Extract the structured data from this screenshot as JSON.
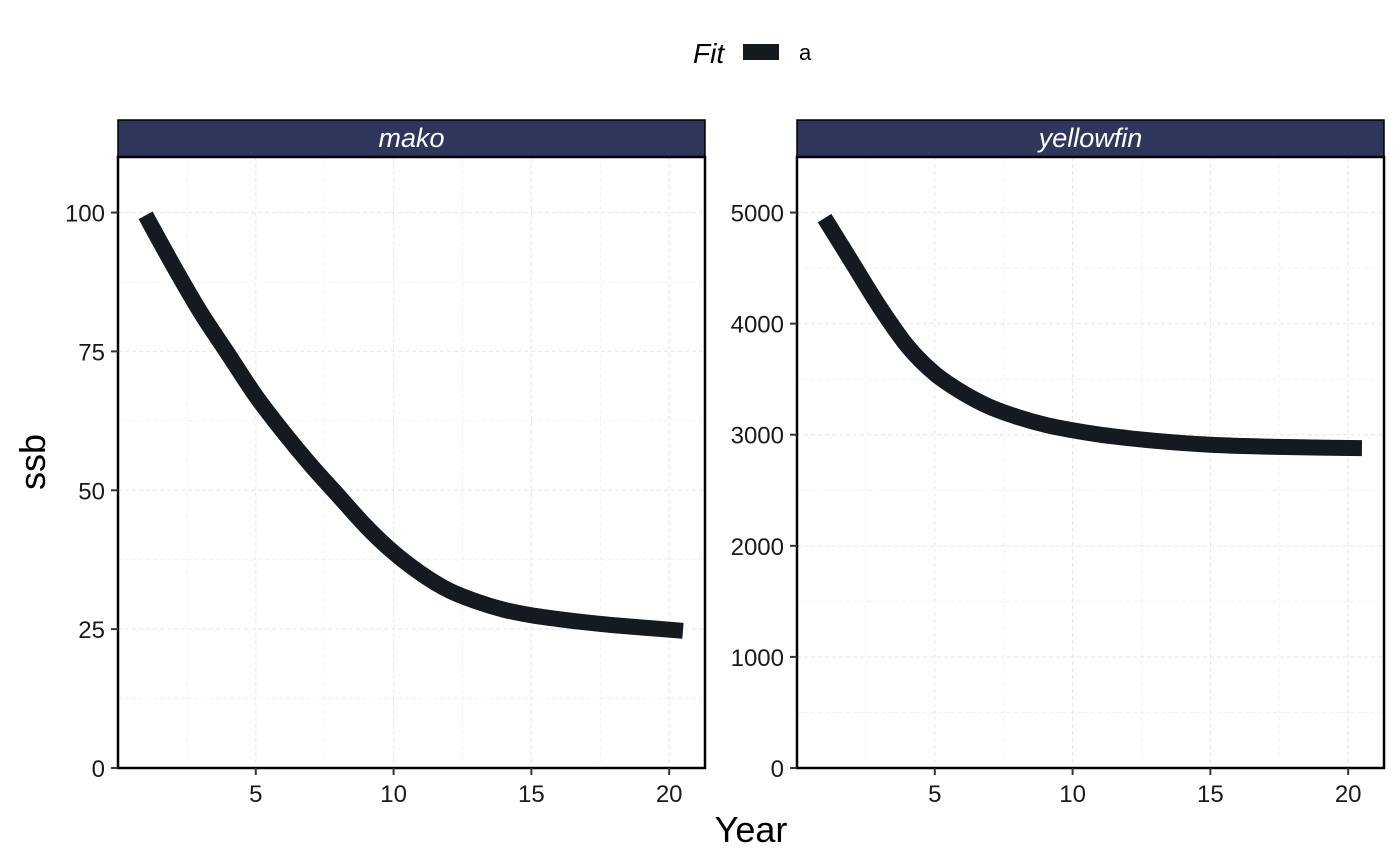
{
  "legend": {
    "title": "Fit",
    "entries": [
      {
        "label": "a",
        "color": "#151a21"
      }
    ]
  },
  "axes": {
    "xlabel": "Year",
    "ylabel": "ssb"
  },
  "colors": {
    "strip_fill": "#2e365c",
    "line": "#151a21",
    "frame": "#000000"
  },
  "chart_data": [
    {
      "type": "line",
      "panel": "mako",
      "x": [
        1,
        2,
        3,
        4,
        5,
        6,
        7,
        8,
        9,
        10,
        11,
        12,
        13,
        14,
        15,
        16,
        17,
        18,
        19,
        20,
        20.5
      ],
      "series": [
        {
          "name": "a",
          "values": [
            99.5,
            90.5,
            82,
            74.5,
            67,
            60.5,
            54.5,
            49,
            43.5,
            38.8,
            35,
            32,
            30,
            28.5,
            27.5,
            26.8,
            26.2,
            25.7,
            25.3,
            24.9,
            24.7
          ]
        }
      ],
      "xlim": [
        0,
        21.3
      ],
      "ylim": [
        0,
        110
      ],
      "xticks": [
        5,
        10,
        15,
        20
      ],
      "yticks": [
        0,
        25,
        50,
        75,
        100
      ],
      "grid": true
    },
    {
      "type": "line",
      "panel": "yellowfin",
      "x": [
        1,
        2,
        3,
        4,
        5,
        6,
        7,
        8,
        9,
        10,
        11,
        12,
        13,
        14,
        15,
        16,
        17,
        18,
        19,
        20,
        20.5
      ],
      "series": [
        {
          "name": "a",
          "values": [
            4950,
            4550,
            4150,
            3800,
            3550,
            3380,
            3250,
            3160,
            3090,
            3040,
            3000,
            2970,
            2945,
            2925,
            2910,
            2900,
            2893,
            2888,
            2884,
            2880,
            2879
          ]
        }
      ],
      "xlim": [
        0,
        21.3
      ],
      "ylim": [
        0,
        5500
      ],
      "xticks": [
        5,
        10,
        15,
        20
      ],
      "yticks": [
        0,
        1000,
        2000,
        3000,
        4000,
        5000
      ],
      "grid": true
    }
  ]
}
